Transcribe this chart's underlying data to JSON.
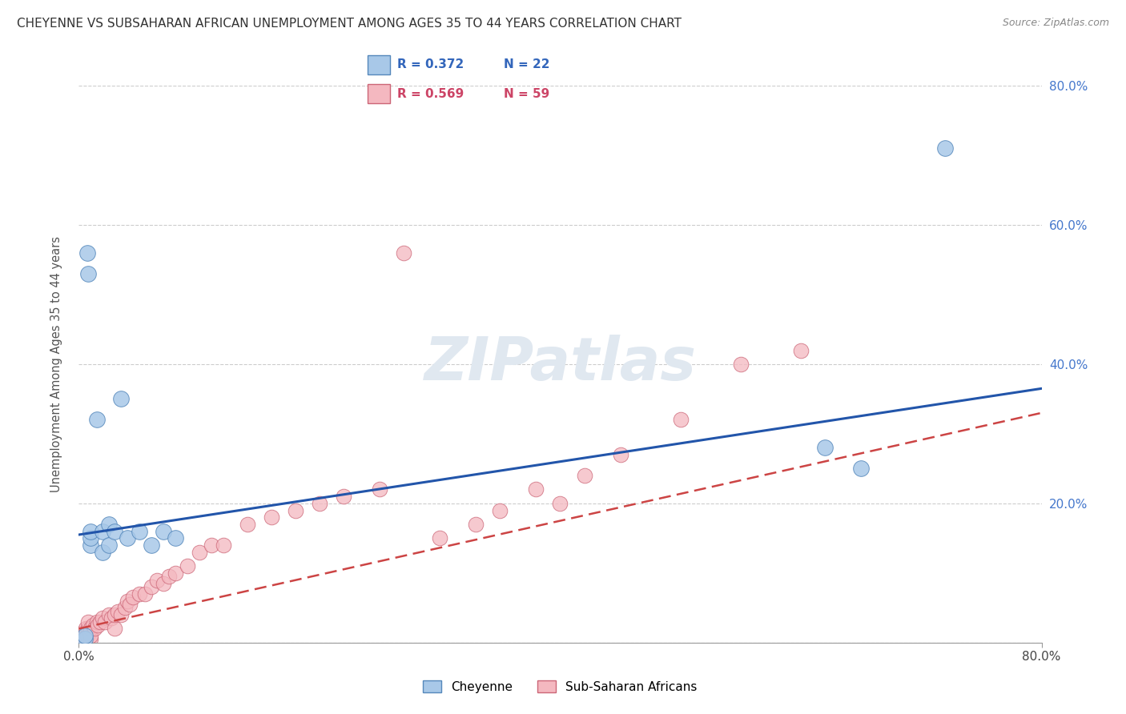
{
  "title": "CHEYENNE VS SUBSAHARAN AFRICAN UNEMPLOYMENT AMONG AGES 35 TO 44 YEARS CORRELATION CHART",
  "source": "Source: ZipAtlas.com",
  "ylabel": "Unemployment Among Ages 35 to 44 years",
  "xlim": [
    0.0,
    0.8
  ],
  "ylim": [
    0.0,
    0.8
  ],
  "legend_r1": "R = 0.372",
  "legend_n1": "N = 22",
  "legend_r2": "R = 0.569",
  "legend_n2": "N = 59",
  "cheyenne_color": "#a8c8e8",
  "cheyenne_edge": "#5588bb",
  "subsaharan_color": "#f4b8c0",
  "subsaharan_edge": "#cc6677",
  "line_cheyenne_color": "#2255aa",
  "line_subsaharan_color": "#cc4444",
  "watermark": "ZIPatlas",
  "cheyenne_x": [
    0.005,
    0.005,
    0.007,
    0.008,
    0.01,
    0.01,
    0.01,
    0.015,
    0.02,
    0.02,
    0.025,
    0.025,
    0.03,
    0.035,
    0.04,
    0.05,
    0.06,
    0.07,
    0.08,
    0.62,
    0.65,
    0.72
  ],
  "cheyenne_y": [
    0.005,
    0.01,
    0.56,
    0.53,
    0.14,
    0.15,
    0.16,
    0.32,
    0.13,
    0.16,
    0.14,
    0.17,
    0.16,
    0.35,
    0.15,
    0.16,
    0.14,
    0.16,
    0.15,
    0.28,
    0.25,
    0.71
  ],
  "subsaharan_x": [
    0.002,
    0.003,
    0.004,
    0.004,
    0.005,
    0.005,
    0.006,
    0.007,
    0.008,
    0.008,
    0.009,
    0.01,
    0.01,
    0.01,
    0.012,
    0.013,
    0.015,
    0.016,
    0.018,
    0.02,
    0.022,
    0.025,
    0.027,
    0.03,
    0.03,
    0.032,
    0.035,
    0.038,
    0.04,
    0.042,
    0.045,
    0.05,
    0.055,
    0.06,
    0.065,
    0.07,
    0.075,
    0.08,
    0.09,
    0.1,
    0.11,
    0.12,
    0.14,
    0.16,
    0.18,
    0.2,
    0.22,
    0.25,
    0.27,
    0.3,
    0.33,
    0.35,
    0.38,
    0.4,
    0.42,
    0.45,
    0.5,
    0.55,
    0.6
  ],
  "subsaharan_y": [
    0.005,
    0.01,
    0.005,
    0.015,
    0.005,
    0.01,
    0.02,
    0.01,
    0.02,
    0.03,
    0.015,
    0.005,
    0.01,
    0.02,
    0.025,
    0.02,
    0.03,
    0.025,
    0.03,
    0.035,
    0.03,
    0.04,
    0.035,
    0.02,
    0.04,
    0.045,
    0.04,
    0.05,
    0.06,
    0.055,
    0.065,
    0.07,
    0.07,
    0.08,
    0.09,
    0.085,
    0.095,
    0.1,
    0.11,
    0.13,
    0.14,
    0.14,
    0.17,
    0.18,
    0.19,
    0.2,
    0.21,
    0.22,
    0.56,
    0.15,
    0.17,
    0.19,
    0.22,
    0.2,
    0.24,
    0.27,
    0.32,
    0.4,
    0.42
  ],
  "line_chey_x0": 0.0,
  "line_chey_y0": 0.155,
  "line_chey_x1": 0.8,
  "line_chey_y1": 0.365,
  "line_sub_x0": 0.0,
  "line_sub_y0": 0.02,
  "line_sub_x1": 0.8,
  "line_sub_y1": 0.33
}
